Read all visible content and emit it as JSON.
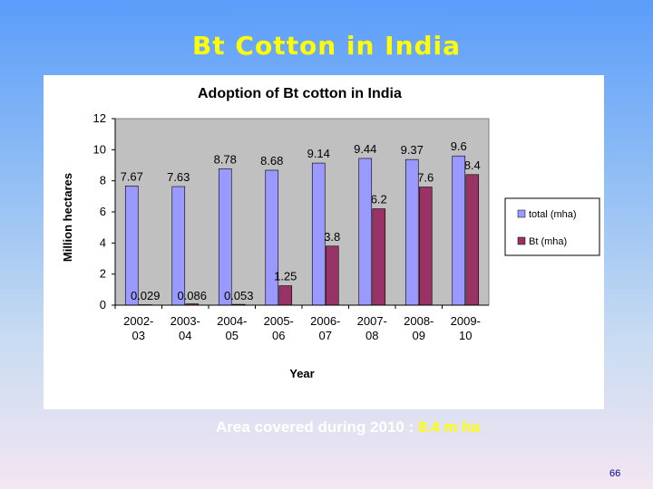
{
  "slide": {
    "title": "Bt Cotton in India",
    "footer_text": "Area covered during 2010 : ",
    "footer_value": "8.4 m ha",
    "page_number": "66"
  },
  "colors": {
    "total": "#9999ff",
    "bt": "#993366",
    "plot_bg": "#c0c0c0",
    "title": "#ffff00"
  },
  "chart_data": {
    "type": "bar",
    "title": "Adoption of Bt cotton in India",
    "xlabel": "Year",
    "ylabel": "Million hectares",
    "ylim": [
      0,
      12
    ],
    "yticks": [
      0,
      2,
      4,
      6,
      8,
      10,
      12
    ],
    "grid": false,
    "legend_position": "right",
    "categories": [
      [
        "2002-",
        "03"
      ],
      [
        "2003-",
        "04"
      ],
      [
        "2004-",
        "05"
      ],
      [
        "2005-",
        "06"
      ],
      [
        "2006-",
        "07"
      ],
      [
        "2007-",
        "08"
      ],
      [
        "2008-",
        "09"
      ],
      [
        "2009-",
        "10"
      ]
    ],
    "series": [
      {
        "name": "total (mha)",
        "values": [
          7.67,
          7.63,
          8.78,
          8.68,
          9.14,
          9.44,
          9.37,
          9.6
        ],
        "labels": [
          "7.67",
          "7.63",
          "8.78",
          "8.68",
          "9.14",
          "9.44",
          "9.37",
          "9.6"
        ]
      },
      {
        "name": "Bt (mha)",
        "values": [
          0.029,
          0.086,
          0.053,
          1.25,
          3.8,
          6.2,
          7.6,
          8.4
        ],
        "labels": [
          "0.029",
          "0.086",
          "0.053",
          "1.25",
          "3.8",
          "6.2",
          "7.6",
          "8.4"
        ]
      }
    ]
  }
}
